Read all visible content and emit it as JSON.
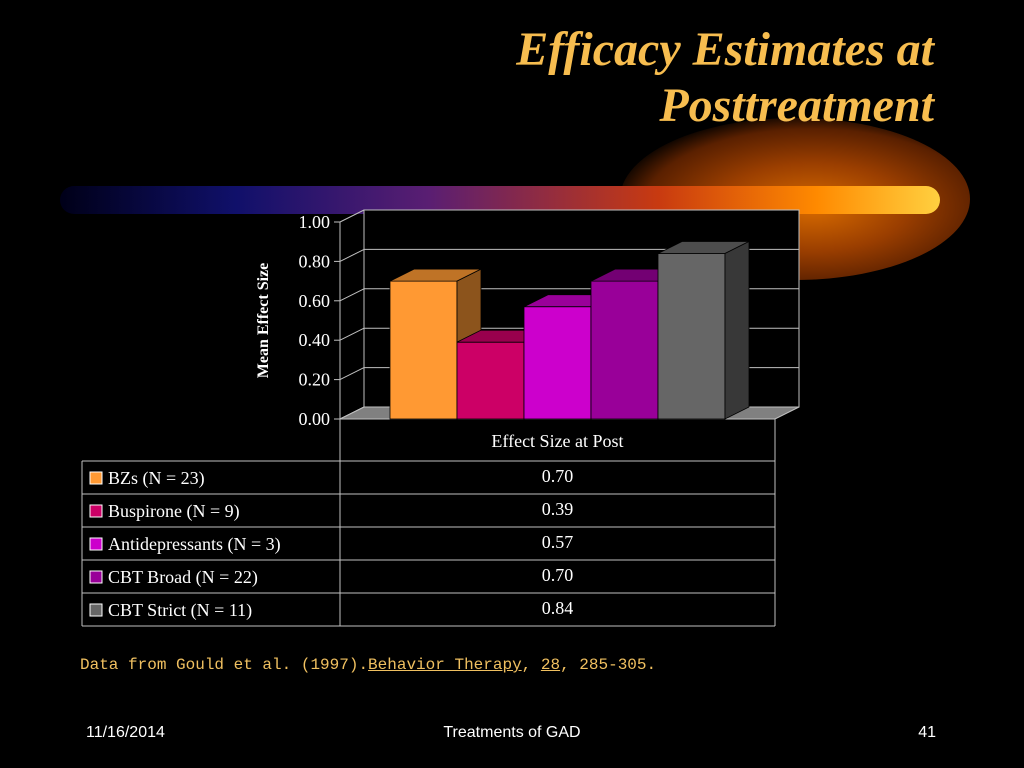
{
  "slide": {
    "title_line1": "Efficacy Estimates at",
    "title_line2": "Posttreatment"
  },
  "citation": {
    "prefix": "Data from Gould et al. (1997).",
    "journal": "Behavior Therapy",
    "sep1": ", ",
    "volume": "28",
    "pages": ", 285-305."
  },
  "footer": {
    "date": "11/16/2014",
    "center": "Treatments of GAD",
    "page_number": "41"
  },
  "chart_data": {
    "type": "bar",
    "categories": [
      "Effect Size at Post"
    ],
    "ylabel": "Mean Effect Size",
    "ylim": [
      0,
      1
    ],
    "yticks": [
      "0.00",
      "0.20",
      "0.40",
      "0.60",
      "0.80",
      "1.00"
    ],
    "grid": true,
    "three_d": true,
    "data_table": true,
    "series": [
      {
        "name": "BZs (N = 23)",
        "values": [
          0.7
        ],
        "label": "0.70",
        "color": "#ff9933"
      },
      {
        "name": "Buspirone (N = 9)",
        "values": [
          0.39
        ],
        "label": "0.39",
        "color": "#cc0066"
      },
      {
        "name": "Antidepressants (N = 3)",
        "values": [
          0.57
        ],
        "label": "0.57",
        "color": "#cc00cc"
      },
      {
        "name": "CBT Broad (N = 22)",
        "values": [
          0.7
        ],
        "label": "0.70",
        "color": "#990099"
      },
      {
        "name": "CBT Strict (N = 11)",
        "values": [
          0.84
        ],
        "label": "0.84",
        "color": "#666666"
      }
    ]
  }
}
